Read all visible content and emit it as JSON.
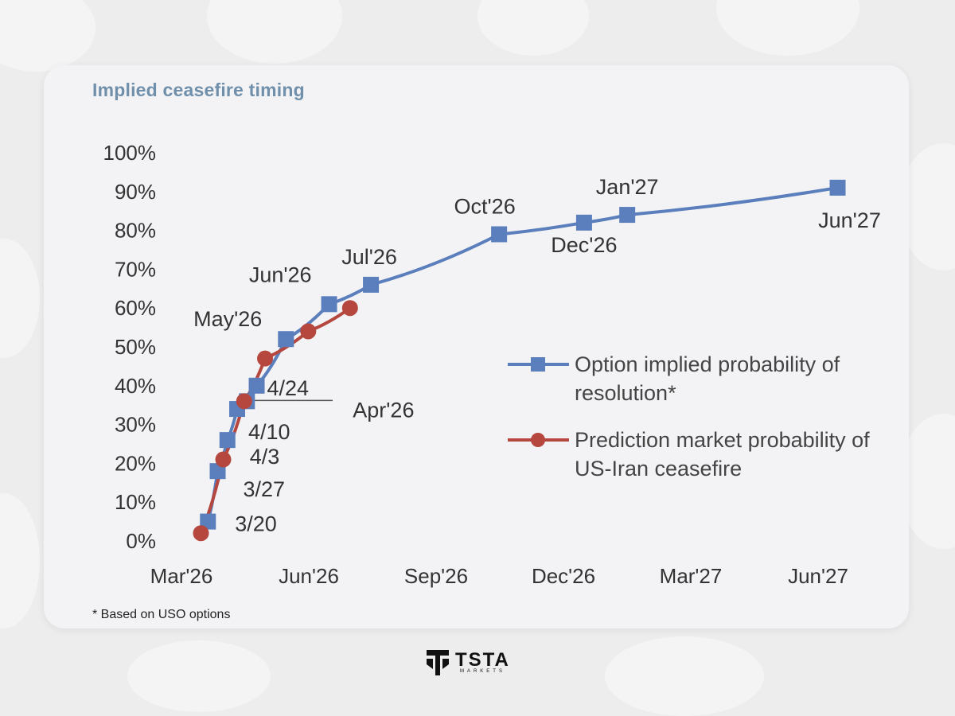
{
  "title": "Implied ceasefire timing",
  "footnote": "* Based on USO options",
  "brand": {
    "name": "TSTA",
    "sub": "MARKETS"
  },
  "colors": {
    "option_series": "#5b7fbc",
    "prediction_series": "#b5473f",
    "title": "#6f8fab"
  },
  "chart_data": {
    "type": "line",
    "title": "Implied ceasefire timing",
    "xlabel": "",
    "ylabel": "",
    "x_ticks": [
      "Mar'26",
      "Jun'26",
      "Sep'26",
      "Dec'26",
      "Mar'27",
      "Jun'27"
    ],
    "xlim": [
      "2026-03-01",
      "2027-06-01"
    ],
    "y_ticks": [
      "0%",
      "10%",
      "20%",
      "30%",
      "40%",
      "50%",
      "60%",
      "70%",
      "80%",
      "90%",
      "100%"
    ],
    "ylim": [
      0,
      100
    ],
    "grid": false,
    "legend_position": "right",
    "series": [
      {
        "name": "Option implied probability of resolution*",
        "marker": "square",
        "points": [
          {
            "x": "2026-03-20",
            "y": 5
          },
          {
            "x": "2026-03-27",
            "y": 18
          },
          {
            "x": "2026-04-03",
            "y": 26
          },
          {
            "x": "2026-04-10",
            "y": 34
          },
          {
            "x": "2026-04-17",
            "y": 36
          },
          {
            "x": "2026-04-24",
            "y": 40
          },
          {
            "x": "2026-05-15",
            "y": 52
          },
          {
            "x": "2026-06-15",
            "y": 61
          },
          {
            "x": "2026-07-15",
            "y": 66
          },
          {
            "x": "2026-10-15",
            "y": 79
          },
          {
            "x": "2026-12-15",
            "y": 82
          },
          {
            "x": "2027-01-15",
            "y": 84
          },
          {
            "x": "2027-06-15",
            "y": 91
          }
        ]
      },
      {
        "name": "Prediction market probability of US-Iran ceasefire",
        "marker": "circle",
        "points": [
          {
            "x": "2026-03-15",
            "y": 2
          },
          {
            "x": "2026-03-31",
            "y": 21
          },
          {
            "x": "2026-04-15",
            "y": 36
          },
          {
            "x": "2026-04-30",
            "y": 47
          },
          {
            "x": "2026-05-31",
            "y": 54
          },
          {
            "x": "2026-06-30",
            "y": 60
          }
        ]
      }
    ],
    "annotations": [
      {
        "text": "3/20",
        "x": "2026-03-20",
        "y": 5
      },
      {
        "text": "3/27",
        "x": "2026-03-27",
        "y": 18
      },
      {
        "text": "4/3",
        "x": "2026-04-03",
        "y": 26
      },
      {
        "text": "4/10",
        "x": "2026-04-10",
        "y": 34
      },
      {
        "text": "4/24",
        "x": "2026-04-24",
        "y": 40
      },
      {
        "text": "Apr'26",
        "x": "2026-04-17",
        "y": 36
      },
      {
        "text": "May'26",
        "x": "2026-05-15",
        "y": 52
      },
      {
        "text": "Jun'26",
        "x": "2026-06-15",
        "y": 61
      },
      {
        "text": "Jul'26",
        "x": "2026-07-15",
        "y": 66
      },
      {
        "text": "Oct'26",
        "x": "2026-10-15",
        "y": 79
      },
      {
        "text": "Dec'26",
        "x": "2026-12-15",
        "y": 82
      },
      {
        "text": "Jan'27",
        "x": "2027-01-15",
        "y": 84
      },
      {
        "text": "Jun'27",
        "x": "2027-06-15",
        "y": 91
      }
    ],
    "legend": [
      {
        "lines": [
          "Option implied probability of",
          "resolution*"
        ],
        "series_index": 0
      },
      {
        "lines": [
          "Prediction market probability of",
          "US-Iran ceasefire"
        ],
        "series_index": 1
      }
    ]
  }
}
